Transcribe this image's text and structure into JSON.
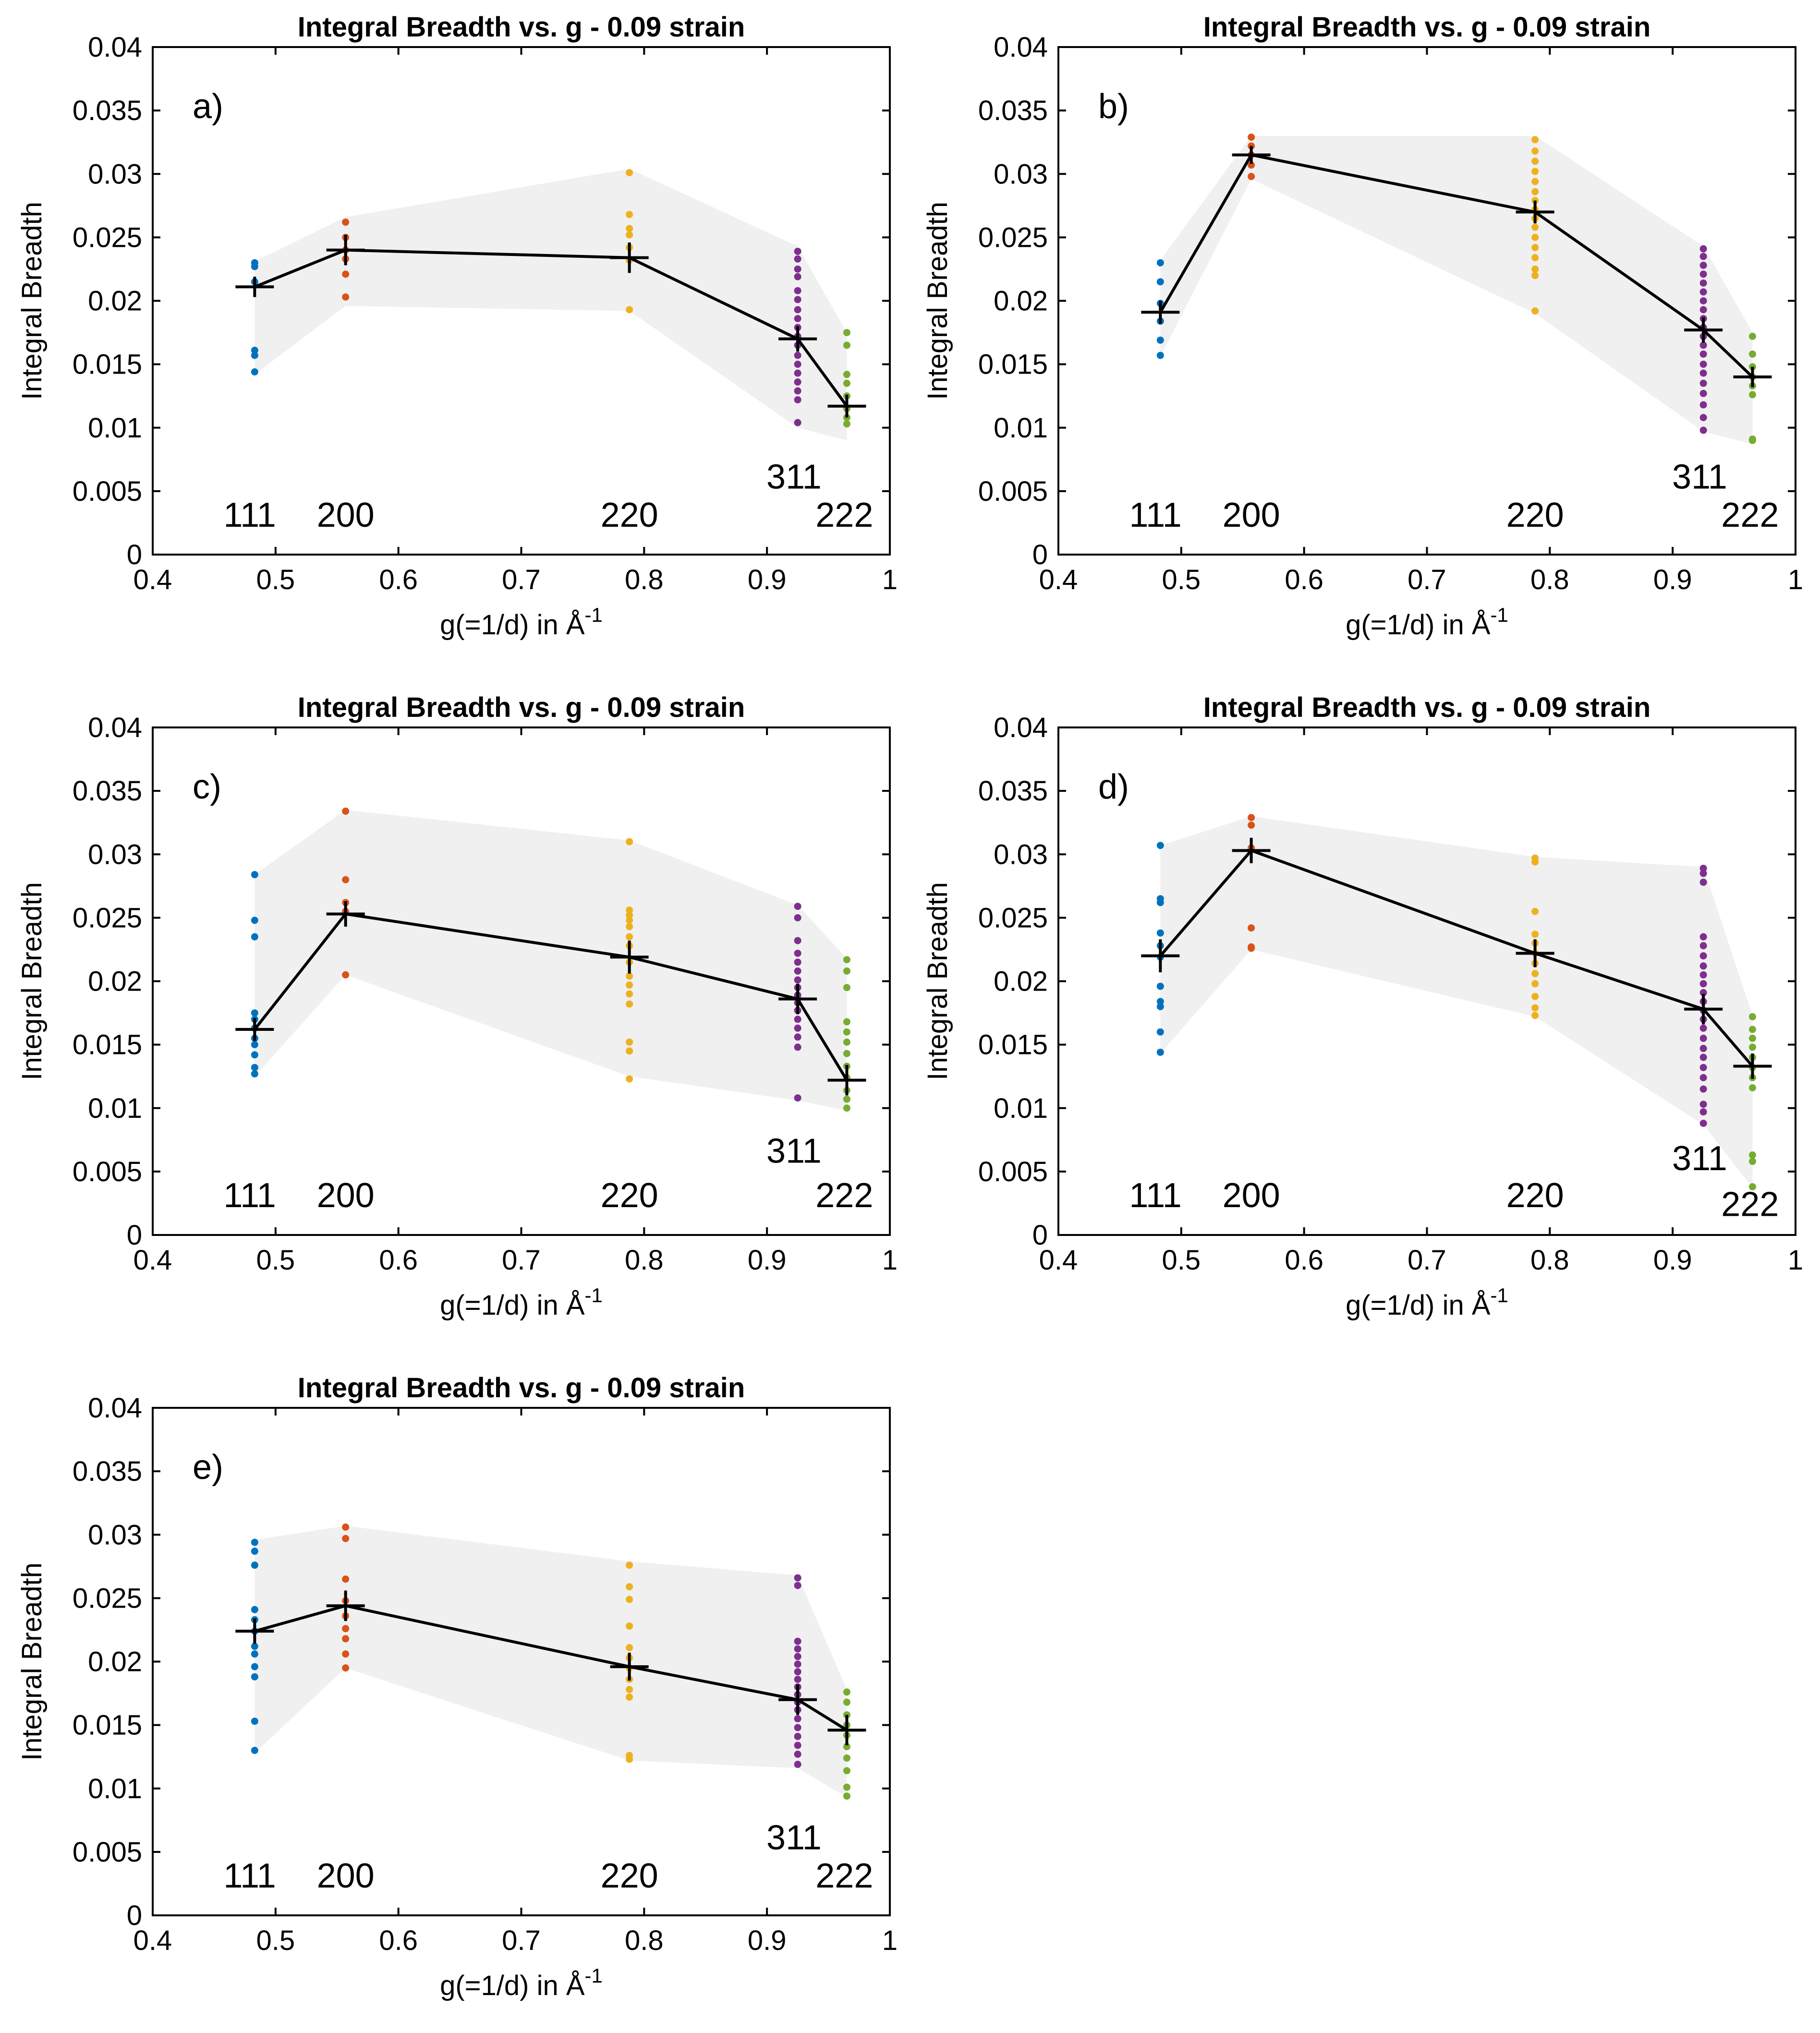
{
  "chart_data": [
    {
      "type": "scatter",
      "panel": "a)",
      "title": "Integral Breadth vs. g - 0.09 strain",
      "xlabel": "g(=1/d) in Å",
      "xlabel_sup": "-1",
      "ylabel": "Integral Breadth",
      "xlim": [
        0.4,
        1
      ],
      "ylim": [
        0,
        0.04
      ],
      "xticks": [
        "0.4",
        "0.5",
        "0.6",
        "0.7",
        "0.8",
        "0.9",
        "1"
      ],
      "yticks": [
        "0",
        "0.005",
        "0.01",
        "0.015",
        "0.02",
        "0.025",
        "0.03",
        "0.035",
        "0.04"
      ],
      "series": [
        {
          "name": "111",
          "g": 0.483,
          "color": "#0072bd",
          "label_y": 0.0022,
          "label_dx": -0.004,
          "points": [
            0.023,
            0.0227,
            0.0215,
            0.0161,
            0.0157,
            0.0144
          ]
        },
        {
          "name": "200",
          "g": 0.557,
          "color": "#d95319",
          "label_y": 0.0022,
          "label_dx": 0,
          "points": [
            0.0262,
            0.025,
            0.024,
            0.0233,
            0.0221,
            0.0203
          ]
        },
        {
          "name": "220",
          "g": 0.788,
          "color": "#edb120",
          "label_y": 0.0022,
          "label_dx": 0,
          "points": [
            0.0301,
            0.0268,
            0.0257,
            0.0252,
            0.0242,
            0.0232,
            0.0193
          ]
        },
        {
          "name": "311",
          "g": 0.925,
          "color": "#7e2f8e",
          "label_y": 0.0052,
          "label_dx": -0.003,
          "points": [
            0.0239,
            0.0233,
            0.0225,
            0.0219,
            0.0208,
            0.0201,
            0.0193,
            0.0186,
            0.0179,
            0.0172,
            0.0165,
            0.0157,
            0.015,
            0.0143,
            0.0136,
            0.0129,
            0.0122,
            0.0104
          ]
        },
        {
          "name": "222",
          "g": 0.965,
          "color": "#77ac30",
          "label_y": 0.0022,
          "label_dx": -0.002,
          "points": [
            0.0175,
            0.0165,
            0.0142,
            0.0135,
            0.0125,
            0.0115,
            0.0108,
            0.0103
          ]
        }
      ],
      "mean": {
        "x": [
          0.483,
          0.557,
          0.788,
          0.925,
          0.965
        ],
        "y": [
          0.0211,
          0.024,
          0.0234,
          0.017,
          0.0117
        ],
        "err": [
          0.0008,
          0.0012,
          0.0012,
          0.001,
          0.0009
        ]
      },
      "band": {
        "lower": [
          0.0142,
          0.0196,
          0.0192,
          0.01,
          0.009
        ],
        "upper": [
          0.0231,
          0.0266,
          0.0304,
          0.0243,
          0.0175
        ]
      }
    },
    {
      "type": "scatter",
      "panel": "b)",
      "title": "Integral Breadth vs. g - 0.09 strain",
      "xlabel": "g(=1/d) in Å",
      "xlabel_sup": "-1",
      "ylabel": "Integral Breadth",
      "xlim": [
        0.4,
        1
      ],
      "ylim": [
        0,
        0.04
      ],
      "xticks": [
        "0.4",
        "0.5",
        "0.6",
        "0.7",
        "0.8",
        "0.9",
        "1"
      ],
      "yticks": [
        "0",
        "0.005",
        "0.01",
        "0.015",
        "0.02",
        "0.025",
        "0.03",
        "0.035",
        "0.04"
      ],
      "series": [
        {
          "name": "111",
          "g": 0.483,
          "color": "#0072bd",
          "label_y": 0.0022,
          "label_dx": -0.004,
          "points": [
            0.023,
            0.0215,
            0.0198,
            0.0184,
            0.0169,
            0.0157
          ]
        },
        {
          "name": "200",
          "g": 0.557,
          "color": "#d95319",
          "label_y": 0.0022,
          "label_dx": 0,
          "points": [
            0.0329,
            0.0322,
            0.0315,
            0.0307,
            0.0298
          ]
        },
        {
          "name": "220",
          "g": 0.788,
          "color": "#edb120",
          "label_y": 0.0022,
          "label_dx": 0,
          "points": [
            0.0327,
            0.0318,
            0.031,
            0.0302,
            0.0294,
            0.0286,
            0.0279,
            0.0272,
            0.0265,
            0.0258,
            0.025,
            0.0242,
            0.0234,
            0.0225,
            0.022,
            0.0192
          ]
        },
        {
          "name": "311",
          "g": 0.925,
          "color": "#7e2f8e",
          "label_y": 0.0052,
          "label_dx": -0.003,
          "points": [
            0.0241,
            0.0235,
            0.0228,
            0.0221,
            0.0214,
            0.0207,
            0.02,
            0.0193,
            0.0186,
            0.0179,
            0.0172,
            0.0165,
            0.0158,
            0.015,
            0.0143,
            0.0135,
            0.0127,
            0.0118,
            0.0108,
            0.0098
          ]
        },
        {
          "name": "222",
          "g": 0.965,
          "color": "#77ac30",
          "label_y": 0.0022,
          "label_dx": -0.002,
          "points": [
            0.0172,
            0.0158,
            0.0148,
            0.014,
            0.0133,
            0.0126,
            0.0091,
            0.009
          ]
        }
      ],
      "mean": {
        "x": [
          0.483,
          0.557,
          0.788,
          0.925,
          0.965
        ],
        "y": [
          0.0191,
          0.0315,
          0.027,
          0.0177,
          0.014
        ],
        "err": [
          0.0009,
          0.0007,
          0.0009,
          0.001,
          0.0008
        ]
      },
      "band": {
        "lower": [
          0.0156,
          0.0296,
          0.019,
          0.0097,
          0.0087
        ],
        "upper": [
          0.0232,
          0.033,
          0.033,
          0.0243,
          0.0175
        ]
      }
    },
    {
      "type": "scatter",
      "panel": "c)",
      "title": "Integral Breadth vs. g - 0.09 strain",
      "xlabel": "g(=1/d) in Å",
      "xlabel_sup": "-1",
      "ylabel": "Integral Breadth",
      "xlim": [
        0.4,
        1
      ],
      "ylim": [
        0,
        0.04
      ],
      "xticks": [
        "0.4",
        "0.5",
        "0.6",
        "0.7",
        "0.8",
        "0.9",
        "1"
      ],
      "yticks": [
        "0",
        "0.005",
        "0.01",
        "0.015",
        "0.02",
        "0.025",
        "0.03",
        "0.035",
        "0.04"
      ],
      "series": [
        {
          "name": "111",
          "g": 0.483,
          "color": "#0072bd",
          "label_y": 0.0022,
          "label_dx": -0.004,
          "points": [
            0.0284,
            0.0248,
            0.0235,
            0.0175,
            0.017,
            0.0163,
            0.0155,
            0.015,
            0.0142,
            0.0132,
            0.0127
          ]
        },
        {
          "name": "200",
          "g": 0.557,
          "color": "#d95319",
          "label_y": 0.0022,
          "label_dx": 0,
          "points": [
            0.0334,
            0.028,
            0.0262,
            0.0255,
            0.0205
          ]
        },
        {
          "name": "220",
          "g": 0.788,
          "color": "#edb120",
          "label_y": 0.0022,
          "label_dx": 0,
          "points": [
            0.031,
            0.0256,
            0.0252,
            0.0248,
            0.0243,
            0.0235,
            0.0228,
            0.0215,
            0.0204,
            0.0197,
            0.019,
            0.0182,
            0.0152,
            0.0145,
            0.0123
          ]
        },
        {
          "name": "311",
          "g": 0.925,
          "color": "#7e2f8e",
          "label_y": 0.0057,
          "label_dx": -0.003,
          "points": [
            0.0259,
            0.025,
            0.0232,
            0.0222,
            0.0215,
            0.0208,
            0.0201,
            0.0195,
            0.0189,
            0.0183,
            0.0177,
            0.017,
            0.0163,
            0.0156,
            0.0148,
            0.0108
          ]
        },
        {
          "name": "222",
          "g": 0.965,
          "color": "#77ac30",
          "label_y": 0.0022,
          "label_dx": -0.002,
          "points": [
            0.0217,
            0.0208,
            0.0195,
            0.0168,
            0.016,
            0.0152,
            0.0143,
            0.0133,
            0.0124,
            0.0114,
            0.0107,
            0.01
          ]
        },
        {
          "name": "",
          "g": 0.965,
          "color": "#77ac30",
          "label_y": 0,
          "label_dx": 0,
          "points": []
        }
      ],
      "mean": {
        "x": [
          0.483,
          0.557,
          0.788,
          0.925,
          0.965
        ],
        "y": [
          0.0162,
          0.0253,
          0.0219,
          0.0186,
          0.0122
        ],
        "err": [
          0.0009,
          0.001,
          0.0013,
          0.0012,
          0.0012
        ]
      },
      "band": {
        "lower": [
          0.0125,
          0.0205,
          0.0125,
          0.0106,
          0.0098
        ],
        "upper": [
          0.0284,
          0.0335,
          0.0311,
          0.026,
          0.0218
        ]
      }
    },
    {
      "type": "scatter",
      "panel": "d)",
      "title": "Integral Breadth vs. g - 0.09 strain",
      "xlabel": "g(=1/d) in Å",
      "xlabel_sup": "-1",
      "ylabel": "Integral Breadth",
      "xlim": [
        0.4,
        1
      ],
      "ylim": [
        0,
        0.04
      ],
      "xticks": [
        "0.4",
        "0.5",
        "0.6",
        "0.7",
        "0.8",
        "0.9",
        "1"
      ],
      "yticks": [
        "0",
        "0.005",
        "0.01",
        "0.015",
        "0.02",
        "0.025",
        "0.03",
        "0.035",
        "0.04"
      ],
      "series": [
        {
          "name": "111",
          "g": 0.483,
          "color": "#0072bd",
          "label_y": 0.0022,
          "label_dx": -0.004,
          "points": [
            0.0307,
            0.0265,
            0.0262,
            0.0238,
            0.0228,
            0.0219,
            0.0196,
            0.0184,
            0.018,
            0.016,
            0.0144
          ]
        },
        {
          "name": "200",
          "g": 0.557,
          "color": "#d95319",
          "label_y": 0.0022,
          "label_dx": 0,
          "points": [
            0.0329,
            0.0323,
            0.0305,
            0.0242,
            0.0227,
            0.0226
          ]
        },
        {
          "name": "220",
          "g": 0.788,
          "color": "#edb120",
          "label_y": 0.0022,
          "label_dx": 0,
          "points": [
            0.0297,
            0.0294,
            0.0255,
            0.0237,
            0.023,
            0.0222,
            0.0214,
            0.0206,
            0.0198,
            0.0188,
            0.0179,
            0.0173
          ]
        },
        {
          "name": "311",
          "g": 0.925,
          "color": "#7e2f8e",
          "label_y": 0.0051,
          "label_dx": -0.003,
          "points": [
            0.0289,
            0.0285,
            0.0278,
            0.0235,
            0.0228,
            0.022,
            0.0212,
            0.0205,
            0.0198,
            0.0191,
            0.0184,
            0.0177,
            0.017,
            0.0163,
            0.0155,
            0.0147,
            0.014,
            0.0132,
            0.0124,
            0.0115,
            0.0103,
            0.0097,
            0.0088
          ]
        },
        {
          "name": "222",
          "g": 0.965,
          "color": "#77ac30",
          "label_y": 0.0015,
          "label_dx": -0.002,
          "points": [
            0.0172,
            0.0162,
            0.0155,
            0.0148,
            0.014,
            0.0132,
            0.0124,
            0.0116,
            0.0063,
            0.0058,
            0.0038
          ]
        }
      ],
      "mean": {
        "x": [
          0.483,
          0.557,
          0.788,
          0.925,
          0.965
        ],
        "y": [
          0.022,
          0.0303,
          0.0222,
          0.0178,
          0.0133
        ],
        "err": [
          0.0013,
          0.001,
          0.0011,
          0.0012,
          0.001
        ]
      },
      "band": {
        "lower": [
          0.0143,
          0.0225,
          0.0172,
          0.0087,
          0.0037
        ],
        "upper": [
          0.0307,
          0.033,
          0.0298,
          0.029,
          0.0173
        ]
      }
    },
    {
      "type": "scatter",
      "panel": "e)",
      "title": "Integral Breadth vs. g - 0.09 strain",
      "xlabel": "g(=1/d) in Å",
      "xlabel_sup": "-1",
      "ylabel": "Integral Breadth",
      "xlim": [
        0.4,
        1
      ],
      "ylim": [
        0,
        0.04
      ],
      "xticks": [
        "0.4",
        "0.5",
        "0.6",
        "0.7",
        "0.8",
        "0.9",
        "1"
      ],
      "yticks": [
        "0",
        "0.005",
        "0.01",
        "0.015",
        "0.02",
        "0.025",
        "0.03",
        "0.035",
        "0.04"
      ],
      "series": [
        {
          "name": "111",
          "g": 0.483,
          "color": "#0072bd",
          "label_y": 0.0022,
          "label_dx": -0.004,
          "points": [
            0.0294,
            0.0287,
            0.0276,
            0.0241,
            0.0233,
            0.0224,
            0.0212,
            0.0206,
            0.0196,
            0.0188,
            0.0153,
            0.013
          ]
        },
        {
          "name": "200",
          "g": 0.557,
          "color": "#d95319",
          "label_y": 0.0022,
          "label_dx": 0,
          "points": [
            0.0306,
            0.0297,
            0.0265,
            0.0248,
            0.0236,
            0.0226,
            0.0218,
            0.0206,
            0.0195
          ]
        },
        {
          "name": "220",
          "g": 0.788,
          "color": "#edb120",
          "label_y": 0.0022,
          "label_dx": 0,
          "points": [
            0.0276,
            0.0259,
            0.0249,
            0.0228,
            0.0211,
            0.0203,
            0.0195,
            0.0186,
            0.0178,
            0.0172,
            0.0126,
            0.0123
          ]
        },
        {
          "name": "311",
          "g": 0.925,
          "color": "#7e2f8e",
          "label_y": 0.0052,
          "label_dx": -0.003,
          "points": [
            0.0266,
            0.026,
            0.0216,
            0.021,
            0.0204,
            0.0198,
            0.0192,
            0.0186,
            0.018,
            0.0174,
            0.0168,
            0.0162,
            0.0155,
            0.0148,
            0.0141,
            0.0134,
            0.0127,
            0.0119
          ]
        },
        {
          "name": "222",
          "g": 0.965,
          "color": "#77ac30",
          "label_y": 0.0022,
          "label_dx": -0.002,
          "points": [
            0.0176,
            0.0168,
            0.0158,
            0.015,
            0.0142,
            0.0133,
            0.0124,
            0.0114,
            0.0101,
            0.0094
          ]
        }
      ],
      "mean": {
        "x": [
          0.483,
          0.557,
          0.788,
          0.925,
          0.965
        ],
        "y": [
          0.0224,
          0.0244,
          0.0196,
          0.017,
          0.0146
        ],
        "err": [
          0.001,
          0.0012,
          0.0011,
          0.0012,
          0.0012
        ]
      },
      "band": {
        "lower": [
          0.0128,
          0.0195,
          0.0122,
          0.0116,
          0.0093
        ],
        "upper": [
          0.0296,
          0.0307,
          0.0279,
          0.0268,
          0.0178
        ]
      }
    }
  ]
}
